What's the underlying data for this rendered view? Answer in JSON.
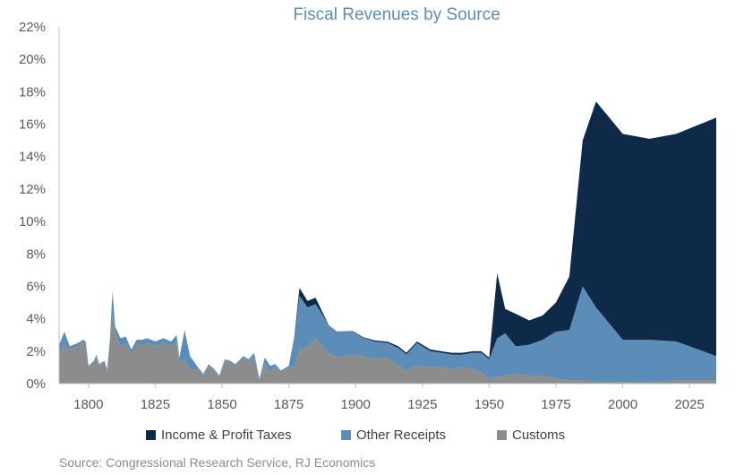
{
  "chart_data": {
    "type": "area",
    "stacked": true,
    "title": "Fiscal Revenues by Source",
    "source": "Source: Congressional Research Service, RJ Economics",
    "xlim": [
      1789,
      2035
    ],
    "ylim": [
      0,
      22
    ],
    "x_ticks": [
      1800,
      1825,
      1850,
      1875,
      1900,
      1925,
      1950,
      1975,
      2000,
      2025
    ],
    "y_ticks": [
      0,
      2,
      4,
      6,
      8,
      10,
      12,
      14,
      16,
      18,
      20,
      22
    ],
    "y_tick_labels": [
      "0%",
      "2%",
      "4%",
      "6%",
      "8%",
      "10%",
      "12%",
      "14%",
      "16%",
      "18%",
      "20%",
      "22%"
    ],
    "legend_position": "bottom",
    "grid": false,
    "series": [
      {
        "name": "Customs",
        "color": "#8c8c8c",
        "points": [
          [
            1789,
            2.0
          ],
          [
            1791,
            2.4
          ],
          [
            1793,
            2.1
          ],
          [
            1796,
            2.3
          ],
          [
            1798,
            2.6
          ],
          [
            1799,
            2.5
          ],
          [
            1800,
            1.0
          ],
          [
            1802,
            1.3
          ],
          [
            1803,
            1.7
          ],
          [
            1804,
            1.1
          ],
          [
            1806,
            1.3
          ],
          [
            1807,
            0.8
          ],
          [
            1808,
            2.5
          ],
          [
            1809,
            4.3
          ],
          [
            1810,
            3.1
          ],
          [
            1812,
            2.3
          ],
          [
            1814,
            2.5
          ],
          [
            1815,
            2.2
          ],
          [
            1816,
            1.8
          ],
          [
            1818,
            2.4
          ],
          [
            1820,
            2.4
          ],
          [
            1822,
            2.5
          ],
          [
            1825,
            2.3
          ],
          [
            1828,
            2.5
          ],
          [
            1831,
            2.3
          ],
          [
            1833,
            2.6
          ],
          [
            1834,
            1.3
          ],
          [
            1836,
            1.5
          ],
          [
            1838,
            0.8
          ],
          [
            1841,
            0.9
          ],
          [
            1843,
            0.5
          ],
          [
            1845,
            1.1
          ],
          [
            1847,
            0.8
          ],
          [
            1849,
            0.4
          ],
          [
            1851,
            1.4
          ],
          [
            1853,
            1.3
          ],
          [
            1855,
            1.1
          ],
          [
            1858,
            1.6
          ],
          [
            1860,
            1.4
          ],
          [
            1862,
            1.6
          ],
          [
            1864,
            0.2
          ],
          [
            1866,
            1.2
          ],
          [
            1868,
            0.7
          ],
          [
            1870,
            1.1
          ],
          [
            1872,
            0.7
          ],
          [
            1875,
            1.0
          ],
          [
            1877,
            1.0
          ],
          [
            1879,
            2.1
          ],
          [
            1882,
            2.3
          ],
          [
            1885,
            2.8
          ],
          [
            1887,
            2.4
          ],
          [
            1890,
            1.9
          ],
          [
            1893,
            1.6
          ],
          [
            1896,
            1.7
          ],
          [
            1899,
            1.8
          ],
          [
            1903,
            1.7
          ],
          [
            1907,
            1.5
          ],
          [
            1912,
            1.6
          ],
          [
            1916,
            1.1
          ],
          [
            1919,
            0.8
          ],
          [
            1923,
            1.1
          ],
          [
            1928,
            1.0
          ],
          [
            1932,
            1.0
          ],
          [
            1936,
            0.9
          ],
          [
            1940,
            1.0
          ],
          [
            1944,
            0.9
          ],
          [
            1947,
            0.7
          ],
          [
            1950,
            0.3
          ],
          [
            1953,
            0.4
          ],
          [
            1956,
            0.5
          ],
          [
            1960,
            0.6
          ],
          [
            1965,
            0.5
          ],
          [
            1970,
            0.5
          ],
          [
            1975,
            0.3
          ],
          [
            1980,
            0.2
          ],
          [
            1985,
            0.2
          ],
          [
            1990,
            0.1
          ],
          [
            2000,
            0.1
          ],
          [
            2010,
            0.1
          ],
          [
            2020,
            0.2
          ],
          [
            2035,
            0.2
          ]
        ]
      },
      {
        "name": "Other Receipts",
        "color": "#5b8db8",
        "points": [
          [
            1789,
            0.4
          ],
          [
            1791,
            0.8
          ],
          [
            1793,
            0.2
          ],
          [
            1796,
            0.2
          ],
          [
            1798,
            0.1
          ],
          [
            1799,
            0.1
          ],
          [
            1800,
            0.1
          ],
          [
            1802,
            0.1
          ],
          [
            1803,
            0.1
          ],
          [
            1804,
            0.1
          ],
          [
            1806,
            0.1
          ],
          [
            1807,
            0.1
          ],
          [
            1808,
            0.2
          ],
          [
            1809,
            1.4
          ],
          [
            1810,
            0.4
          ],
          [
            1812,
            0.5
          ],
          [
            1814,
            0.4
          ],
          [
            1815,
            0.3
          ],
          [
            1816,
            0.3
          ],
          [
            1818,
            0.3
          ],
          [
            1820,
            0.3
          ],
          [
            1822,
            0.3
          ],
          [
            1825,
            0.3
          ],
          [
            1828,
            0.3
          ],
          [
            1831,
            0.3
          ],
          [
            1833,
            0.4
          ],
          [
            1834,
            0.3
          ],
          [
            1836,
            1.8
          ],
          [
            1838,
            0.9
          ],
          [
            1841,
            0.1
          ],
          [
            1843,
            0.1
          ],
          [
            1845,
            0.1
          ],
          [
            1847,
            0.1
          ],
          [
            1849,
            0.1
          ],
          [
            1851,
            0.1
          ],
          [
            1853,
            0.1
          ],
          [
            1855,
            0.1
          ],
          [
            1858,
            0.1
          ],
          [
            1860,
            0.1
          ],
          [
            1862,
            0.3
          ],
          [
            1864,
            0.1
          ],
          [
            1866,
            0.4
          ],
          [
            1868,
            0.4
          ],
          [
            1870,
            0.1
          ],
          [
            1872,
            0.1
          ],
          [
            1875,
            0.1
          ],
          [
            1877,
            1.7
          ],
          [
            1879,
            3.3
          ],
          [
            1882,
            2.4
          ],
          [
            1885,
            2.1
          ],
          [
            1887,
            2.0
          ],
          [
            1890,
            1.7
          ],
          [
            1893,
            1.6
          ],
          [
            1896,
            1.5
          ],
          [
            1899,
            1.4
          ],
          [
            1903,
            1.1
          ],
          [
            1907,
            1.1
          ],
          [
            1912,
            0.9
          ],
          [
            1916,
            1.1
          ],
          [
            1919,
            1.0
          ],
          [
            1923,
            1.4
          ],
          [
            1928,
            1.0
          ],
          [
            1932,
            0.9
          ],
          [
            1936,
            0.9
          ],
          [
            1940,
            0.8
          ],
          [
            1944,
            1.0
          ],
          [
            1947,
            1.2
          ],
          [
            1950,
            1.2
          ],
          [
            1953,
            2.4
          ],
          [
            1956,
            2.6
          ],
          [
            1960,
            1.7
          ],
          [
            1965,
            1.9
          ],
          [
            1970,
            2.2
          ],
          [
            1975,
            2.9
          ],
          [
            1980,
            3.1
          ],
          [
            1985,
            5.8
          ],
          [
            1990,
            4.6
          ],
          [
            2000,
            2.6
          ],
          [
            2010,
            2.6
          ],
          [
            2020,
            2.4
          ],
          [
            2035,
            1.5
          ]
        ]
      },
      {
        "name": "Income & Profit Taxes",
        "color": "#0f2a48",
        "points": [
          [
            1789,
            0
          ],
          [
            1862,
            0
          ],
          [
            1864,
            0
          ],
          [
            1866,
            0
          ],
          [
            1868,
            0
          ],
          [
            1870,
            0
          ],
          [
            1872,
            0
          ],
          [
            1875,
            0
          ],
          [
            1877,
            0.1
          ],
          [
            1879,
            0.5
          ],
          [
            1882,
            0.4
          ],
          [
            1885,
            0.4
          ],
          [
            1887,
            0.2
          ],
          [
            1890,
            0
          ],
          [
            1916,
            0.1
          ],
          [
            1919,
            0.1
          ],
          [
            1923,
            0.1
          ],
          [
            1928,
            0.1
          ],
          [
            1932,
            0.1
          ],
          [
            1936,
            0.1
          ],
          [
            1940,
            0.1
          ],
          [
            1944,
            0.1
          ],
          [
            1947,
            0.1
          ],
          [
            1950,
            0.1
          ],
          [
            1953,
            4.0
          ],
          [
            1956,
            1.5
          ],
          [
            1960,
            2.0
          ],
          [
            1965,
            1.5
          ],
          [
            1970,
            1.5
          ],
          [
            1975,
            1.8
          ],
          [
            1980,
            3.3
          ],
          [
            1985,
            9.0
          ],
          [
            1990,
            12.7
          ],
          [
            2000,
            12.7
          ],
          [
            2010,
            12.4
          ],
          [
            2020,
            12.8
          ],
          [
            2035,
            14.7
          ]
        ]
      }
    ]
  }
}
